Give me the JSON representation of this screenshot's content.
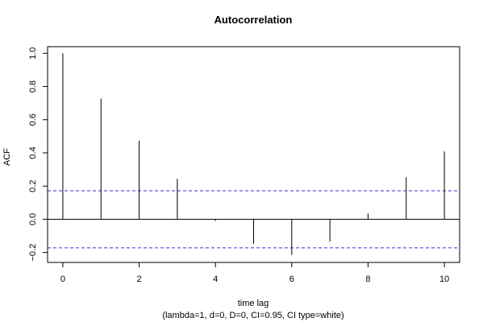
{
  "chart_data": {
    "type": "bar",
    "title": "Autocorrelation",
    "xlabel": "time lag",
    "subtitle": "(lambda=1, d=0, D=0, CI=0.95, CI type=white)",
    "ylabel": "ACF",
    "x": [
      0,
      1,
      2,
      3,
      4,
      5,
      6,
      7,
      8,
      9,
      10
    ],
    "values": [
      1.0,
      0.727,
      0.473,
      0.244,
      -0.01,
      -0.148,
      -0.215,
      -0.135,
      0.035,
      0.253,
      0.409
    ],
    "confidence_band": [
      -0.172,
      0.172
    ],
    "confidence_band_color": "#3333cc",
    "xlim": [
      -0.4,
      10.4
    ],
    "ylim": [
      -0.26,
      1.04
    ],
    "xticks": [
      0,
      2,
      4,
      6,
      8,
      10
    ],
    "yticks": [
      -0.2,
      0.0,
      0.2,
      0.4,
      0.6,
      0.8,
      1.0
    ],
    "ytick_labels": [
      "−0.2",
      "0.0",
      "0.2",
      "0.4",
      "0.6",
      "0.8",
      "1.0"
    ],
    "zero_line": true,
    "grid": false
  }
}
